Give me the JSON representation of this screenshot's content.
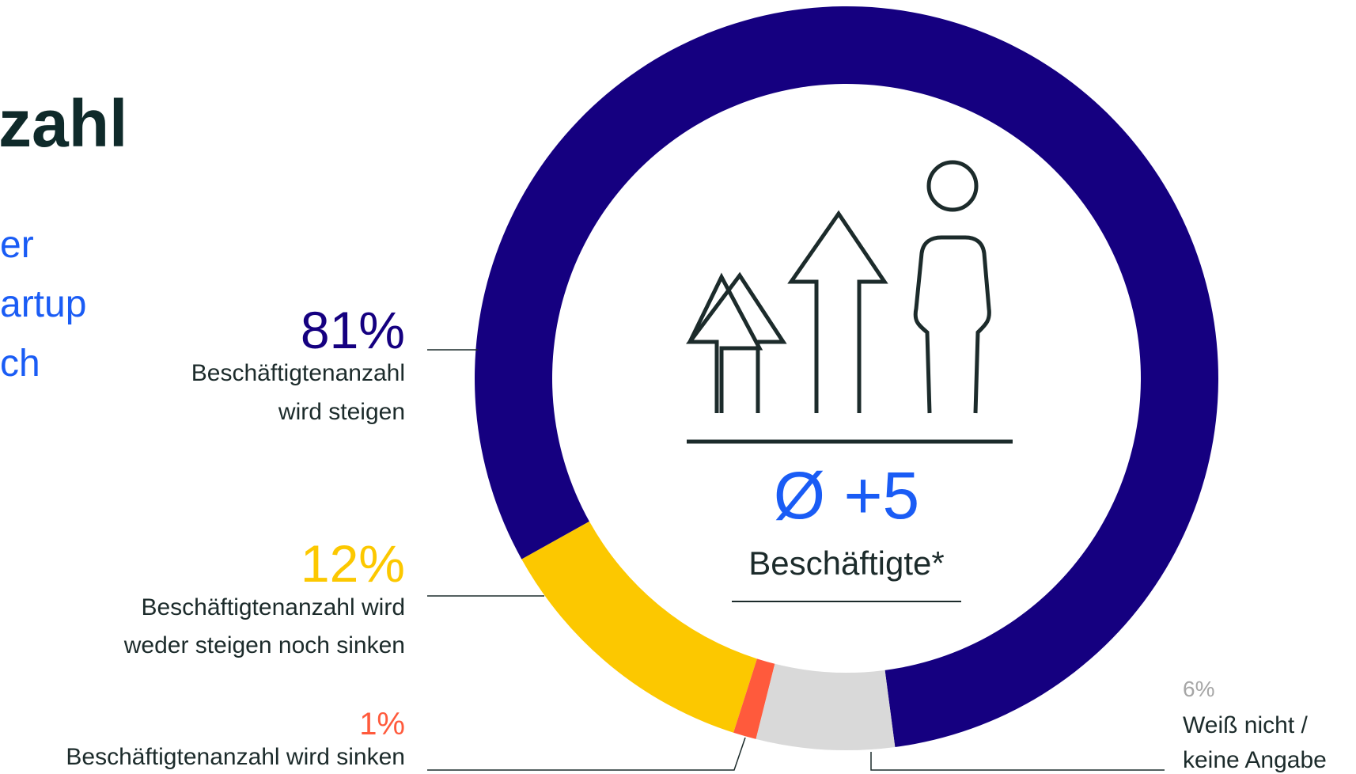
{
  "chart_data": {
    "type": "donut",
    "heading": "zahl",
    "subheading_lines": [
      "er",
      "artup",
      "ch"
    ],
    "center_value": "Ø +5",
    "center_label": "Beschäftigte*",
    "categories": [
      [
        "Beschäftigtenanzahl",
        "wird steigen"
      ],
      [
        "Beschäftigtenanzahl wird",
        "weder steigen noch sinken"
      ],
      [
        "Beschäftigtenanzahl wird sinken"
      ],
      [
        "Weiß nicht /",
        "keine Angabe"
      ]
    ],
    "values": [
      81,
      12,
      1,
      6
    ],
    "value_labels": [
      "81%",
      "12%",
      "1%",
      "6%"
    ],
    "colors": [
      "#150080",
      "#fcc800",
      "#ff5a3c",
      "#d9d9d9"
    ],
    "value_label_colors": [
      "#150080",
      "#fcc800",
      "#ff5a3c",
      "#a6a6a6"
    ]
  }
}
